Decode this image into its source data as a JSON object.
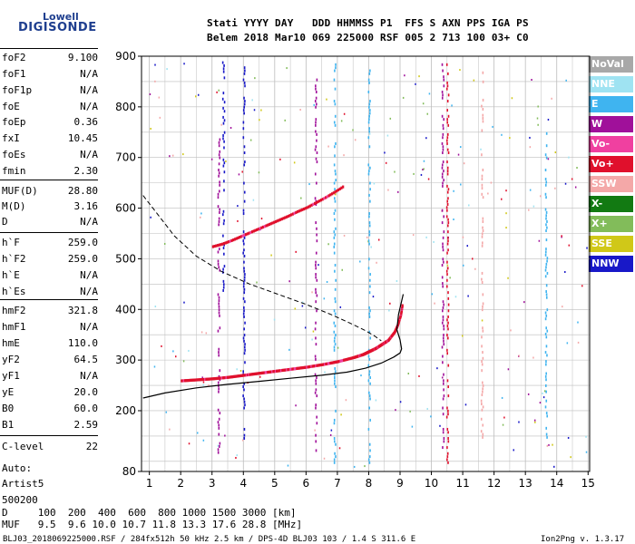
{
  "logo": {
    "line1": "Lowell",
    "line2": "DIGISONDE"
  },
  "header": {
    "row1": "Stati YYYY DAY   DDD HHMMSS P1  FFS S AXN PPS IGA PS",
    "row2": "Belem 2018 Mar10 069 225000 RSF 005 2 713 100 03+ C0"
  },
  "params": [
    {
      "name": "foF2",
      "value": "9.100"
    },
    {
      "name": "foF1",
      "value": "N/A"
    },
    {
      "name": "foF1p",
      "value": "N/A"
    },
    {
      "name": "foE",
      "value": "N/A"
    },
    {
      "name": "foEp",
      "value": "0.36"
    },
    {
      "name": "fxI",
      "value": "10.45"
    },
    {
      "name": "foEs",
      "value": "N/A"
    },
    {
      "name": "fmin",
      "value": "2.30"
    },
    {
      "name": "MUF(D)",
      "value": "28.80"
    },
    {
      "name": "M(D)",
      "value": "3.16"
    },
    {
      "name": "D",
      "value": "N/A"
    },
    {
      "name": "h`F",
      "value": "259.0"
    },
    {
      "name": "h`F2",
      "value": "259.0"
    },
    {
      "name": "h`E",
      "value": "N/A"
    },
    {
      "name": "h`Es",
      "value": "N/A"
    },
    {
      "name": "hmF2",
      "value": "321.8"
    },
    {
      "name": "hmF1",
      "value": "N/A"
    },
    {
      "name": "hmE",
      "value": "110.0"
    },
    {
      "name": "yF2",
      "value": "64.5"
    },
    {
      "name": "yF1",
      "value": "N/A"
    },
    {
      "name": "yE",
      "value": "20.0"
    },
    {
      "name": "B0",
      "value": "60.0"
    },
    {
      "name": "B1",
      "value": "2.59"
    },
    {
      "name": "C-level",
      "value": "22"
    }
  ],
  "auto": [
    "Auto:",
    "Artist5",
    "500200"
  ],
  "legend": [
    {
      "label": "NoVal",
      "color": "#a8a8a8"
    },
    {
      "label": "NNE",
      "color": "#9fe3f2"
    },
    {
      "label": "E",
      "color": "#3fb4f0"
    },
    {
      "label": "W",
      "color": "#a0109a"
    },
    {
      "label": "Vo-",
      "color": "#f040a0"
    },
    {
      "label": "Vo+",
      "color": "#e0102c"
    },
    {
      "label": "SSW",
      "color": "#f4a8a8"
    },
    {
      "label": "X-",
      "color": "#127a12"
    },
    {
      "label": "X+",
      "color": "#82bc5a"
    },
    {
      "label": "SSE",
      "color": "#d0c818"
    },
    {
      "label": "NNW",
      "color": "#1818c8"
    }
  ],
  "footer": {
    "d_row": "D     100  200  400  600  800 1000 1500 3000 [km]",
    "muf_row": "MUF   9.5  9.6 10.0 10.7 11.8 13.3 17.6 28.8 [MHz]",
    "file_info": "BLJ03_2018069225000.RSF / 284fx512h 50 kHz 2.5 km / DPS-4D BLJ03 103 / 1.4 S 311.6 E",
    "version": "Ion2Png v. 1.3.17"
  },
  "chart_data": {
    "type": "scatter",
    "x_ticks": [
      "1",
      "2",
      "3",
      "4",
      "5",
      "6",
      "7",
      "8",
      "9",
      "10",
      "11",
      "12",
      "13",
      "14",
      "15"
    ],
    "y_ticks": [
      "80",
      "200",
      "300",
      "400",
      "500",
      "600",
      "700",
      "800",
      "900"
    ],
    "xlim": [
      0.75,
      15.05
    ],
    "ylim": [
      80,
      900
    ],
    "grid": true,
    "legend_position": "right",
    "trace_vo_plus": {
      "x": [
        2.0,
        2.5,
        3.0,
        3.5,
        4.0,
        4.5,
        5.0,
        5.5,
        6.0,
        6.5,
        7.0,
        7.5,
        7.8,
        8.0,
        8.2,
        8.4,
        8.6,
        8.8,
        8.9,
        9.0,
        9.05
      ],
      "y": [
        260,
        262,
        264,
        267,
        271,
        275,
        279,
        283,
        287,
        292,
        298,
        306,
        312,
        318,
        324,
        332,
        340,
        356,
        370,
        390,
        410
      ]
    },
    "trace_vo_minus_upper": {
      "x": [
        3.0,
        3.3,
        3.6,
        3.9,
        4.2,
        4.5,
        4.8,
        5.1,
        5.4,
        5.7,
        6.0,
        6.3,
        6.6,
        6.9,
        7.2
      ],
      "y": [
        525,
        530,
        537,
        545,
        553,
        561,
        569,
        577,
        585,
        594,
        602,
        612,
        622,
        633,
        645
      ]
    },
    "profile_solid": {
      "x": [
        0.8,
        1.5,
        2.5,
        3.5,
        4.5,
        5.5,
        6.5,
        7.3,
        7.9,
        8.4,
        8.8,
        9.0,
        9.05,
        9.0,
        8.9,
        8.95,
        9.1
      ],
      "y": [
        225,
        235,
        245,
        252,
        258,
        264,
        270,
        276,
        284,
        294,
        306,
        314,
        322,
        340,
        360,
        390,
        430
      ]
    },
    "profile_dashed": {
      "x": [
        0.8,
        1.3,
        1.8,
        2.5,
        3.3,
        4.2,
        5.1,
        6.0,
        6.8,
        7.4,
        7.9,
        8.2,
        8.4
      ],
      "y": [
        625,
        585,
        545,
        505,
        475,
        450,
        430,
        410,
        390,
        373,
        358,
        347,
        338
      ]
    },
    "vertical_streaks": [
      {
        "x": 3.2,
        "y1": 120,
        "y2": 760,
        "color": "#a0109a"
      },
      {
        "x": 3.35,
        "y1": 440,
        "y2": 890,
        "color": "#1818c8"
      },
      {
        "x": 4.0,
        "y1": 130,
        "y2": 880,
        "color": "#1818c8"
      },
      {
        "x": 6.3,
        "y1": 100,
        "y2": 870,
        "color": "#a0109a"
      },
      {
        "x": 6.9,
        "y1": 100,
        "y2": 890,
        "color": "#3fb4f0"
      },
      {
        "x": 8.0,
        "y1": 100,
        "y2": 880,
        "color": "#3fb4f0"
      },
      {
        "x": 10.35,
        "y1": 130,
        "y2": 890,
        "color": "#a0109a"
      },
      {
        "x": 10.5,
        "y1": 100,
        "y2": 890,
        "color": "#e0102c"
      },
      {
        "x": 11.6,
        "y1": 150,
        "y2": 880,
        "color": "#f4a8a8"
      },
      {
        "x": 13.65,
        "y1": 150,
        "y2": 750,
        "color": "#3fb4f0"
      }
    ]
  }
}
